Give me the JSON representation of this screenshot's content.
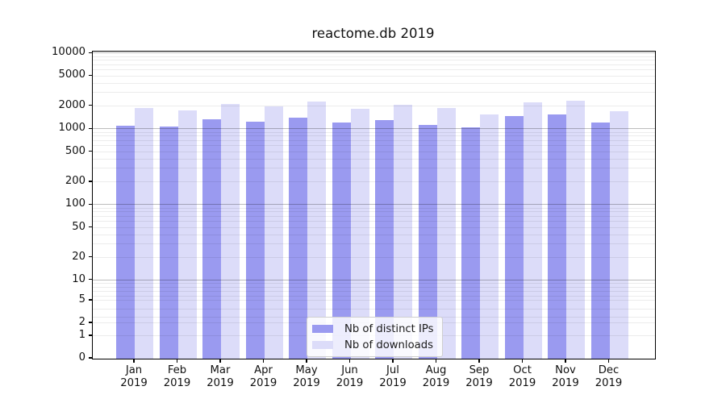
{
  "chart_data": {
    "type": "bar",
    "title": "reactome.db 2019",
    "x_categories": [
      "Jan",
      "Feb",
      "Mar",
      "Apr",
      "May",
      "Jun",
      "Jul",
      "Aug",
      "Sep",
      "Oct",
      "Nov",
      "Dec"
    ],
    "x_year_label": "2019",
    "series": [
      {
        "name": "Nb of distinct IPs",
        "color": "#9a9af0",
        "values": [
          1120,
          1090,
          1350,
          1240,
          1420,
          1230,
          1320,
          1130,
          1060,
          1490,
          1570,
          1220
        ]
      },
      {
        "name": "Nb of downloads",
        "color": "#dcdcf9",
        "values": [
          1900,
          1750,
          2170,
          1990,
          2300,
          1860,
          2120,
          1920,
          1550,
          2240,
          2400,
          1730
        ]
      }
    ],
    "y_ticks": [
      0,
      1,
      2,
      5,
      10,
      20,
      50,
      100,
      200,
      500,
      1000,
      2000,
      5000,
      10000
    ],
    "y_scale": "asinh-log (0 at baseline, ~1 decade per 94px above 10)",
    "ylim": [
      0,
      10500
    ],
    "grid": "horizontal, major at powers of 10, minor at 2-9 multiples, drawn over bars",
    "legend_position": "lower center"
  }
}
